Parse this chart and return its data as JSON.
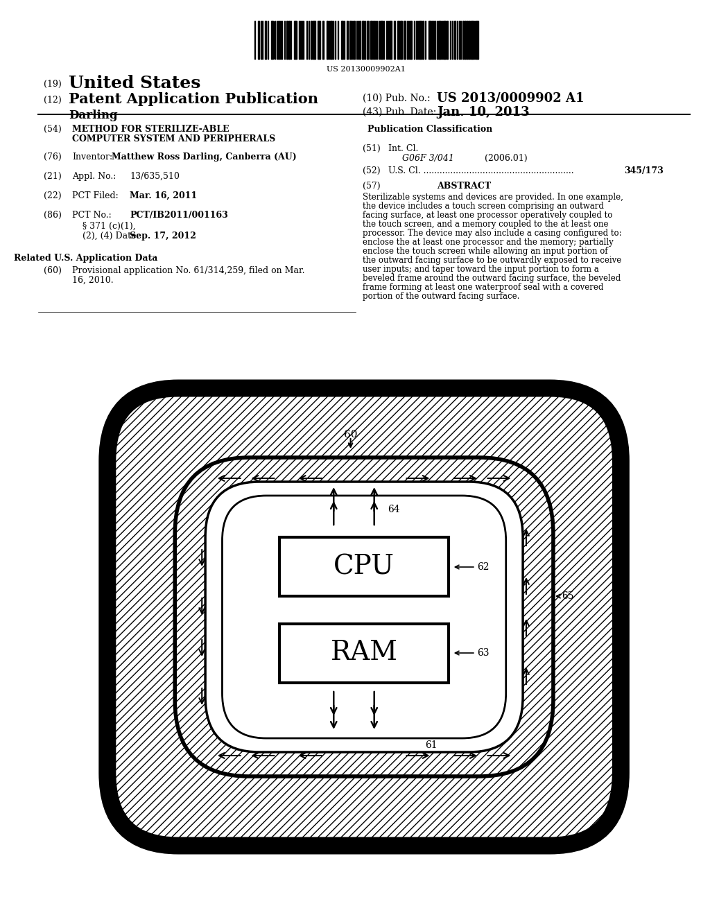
{
  "bg_color": "#ffffff",
  "barcode_text": "US 20130009902A1",
  "title_19": "(19) United States",
  "title_12": "(12) Patent Application Publication",
  "pub_no_label": "(10) Pub. No.:",
  "pub_no_value": "US 2013/0009902 A1",
  "pub_date_label": "(43) Pub. Date:",
  "pub_date_value": "Jan. 10, 2013",
  "inventor_name": "Darling",
  "field_54_label": "(54)",
  "field_54_text1": "METHOD FOR STERILIZE-ABLE",
  "field_54_text2": "COMPUTER SYSTEM AND PERIPHERALS",
  "field_76_label": "(76)",
  "field_76_text": "Inventor:",
  "field_76_value": "Matthew Ross Darling, Canberra (AU)",
  "field_21_label": "(21)",
  "field_21_text": "Appl. No.:",
  "field_21_value": "13/635,510",
  "field_22_label": "(22)",
  "field_22_text": "PCT Filed:",
  "field_22_value": "Mar. 16, 2011",
  "field_86_label": "(86)",
  "field_86_text": "PCT No.:",
  "field_86_value": "PCT/IB2011/001163",
  "field_86b_text": "§ 371 (c)(1),",
  "field_86c_text": "(2), (4) Date:",
  "field_86c_value": "Sep. 17, 2012",
  "related_title": "Related U.S. Application Data",
  "field_60_label": "(60)",
  "field_60_text": "Provisional application No. 61/314,259, filed on Mar. 16, 2010.",
  "pub_class_title": "Publication Classification",
  "field_51_label": "(51)",
  "field_51_text": "Int. Cl.",
  "field_51_class": "G06F 3/041",
  "field_51_year": "(2006.01)",
  "field_52_label": "(52)",
  "field_52_text": "U.S. Cl. ........................................................",
  "field_52_value": "345/173",
  "field_57_label": "(57)",
  "field_57_title": "ABSTRACT",
  "abstract_text": "Sterilizable systems and devices are provided. In one example, the device includes a touch screen comprising an outward facing surface, at least one processor operatively coupled to the touch screen, and a memory coupled to the at least one processor. The device may also include a casing configured to: enclose the at least one processor and the memory; partially enclose the touch screen while allowing an input portion of the outward facing surface to be outwardly exposed to receive user inputs; and taper toward the input portion to form a beveled frame around the outward facing surface, the beveled frame forming at least one waterproof seal with a covered portion of the outward facing surface.",
  "diagram_label_60": "60",
  "diagram_label_61": "61",
  "diagram_label_62": "62",
  "diagram_label_63": "63",
  "diagram_label_64": "64",
  "diagram_label_65": "65",
  "cpu_label": "CPU",
  "ram_label": "RAM"
}
